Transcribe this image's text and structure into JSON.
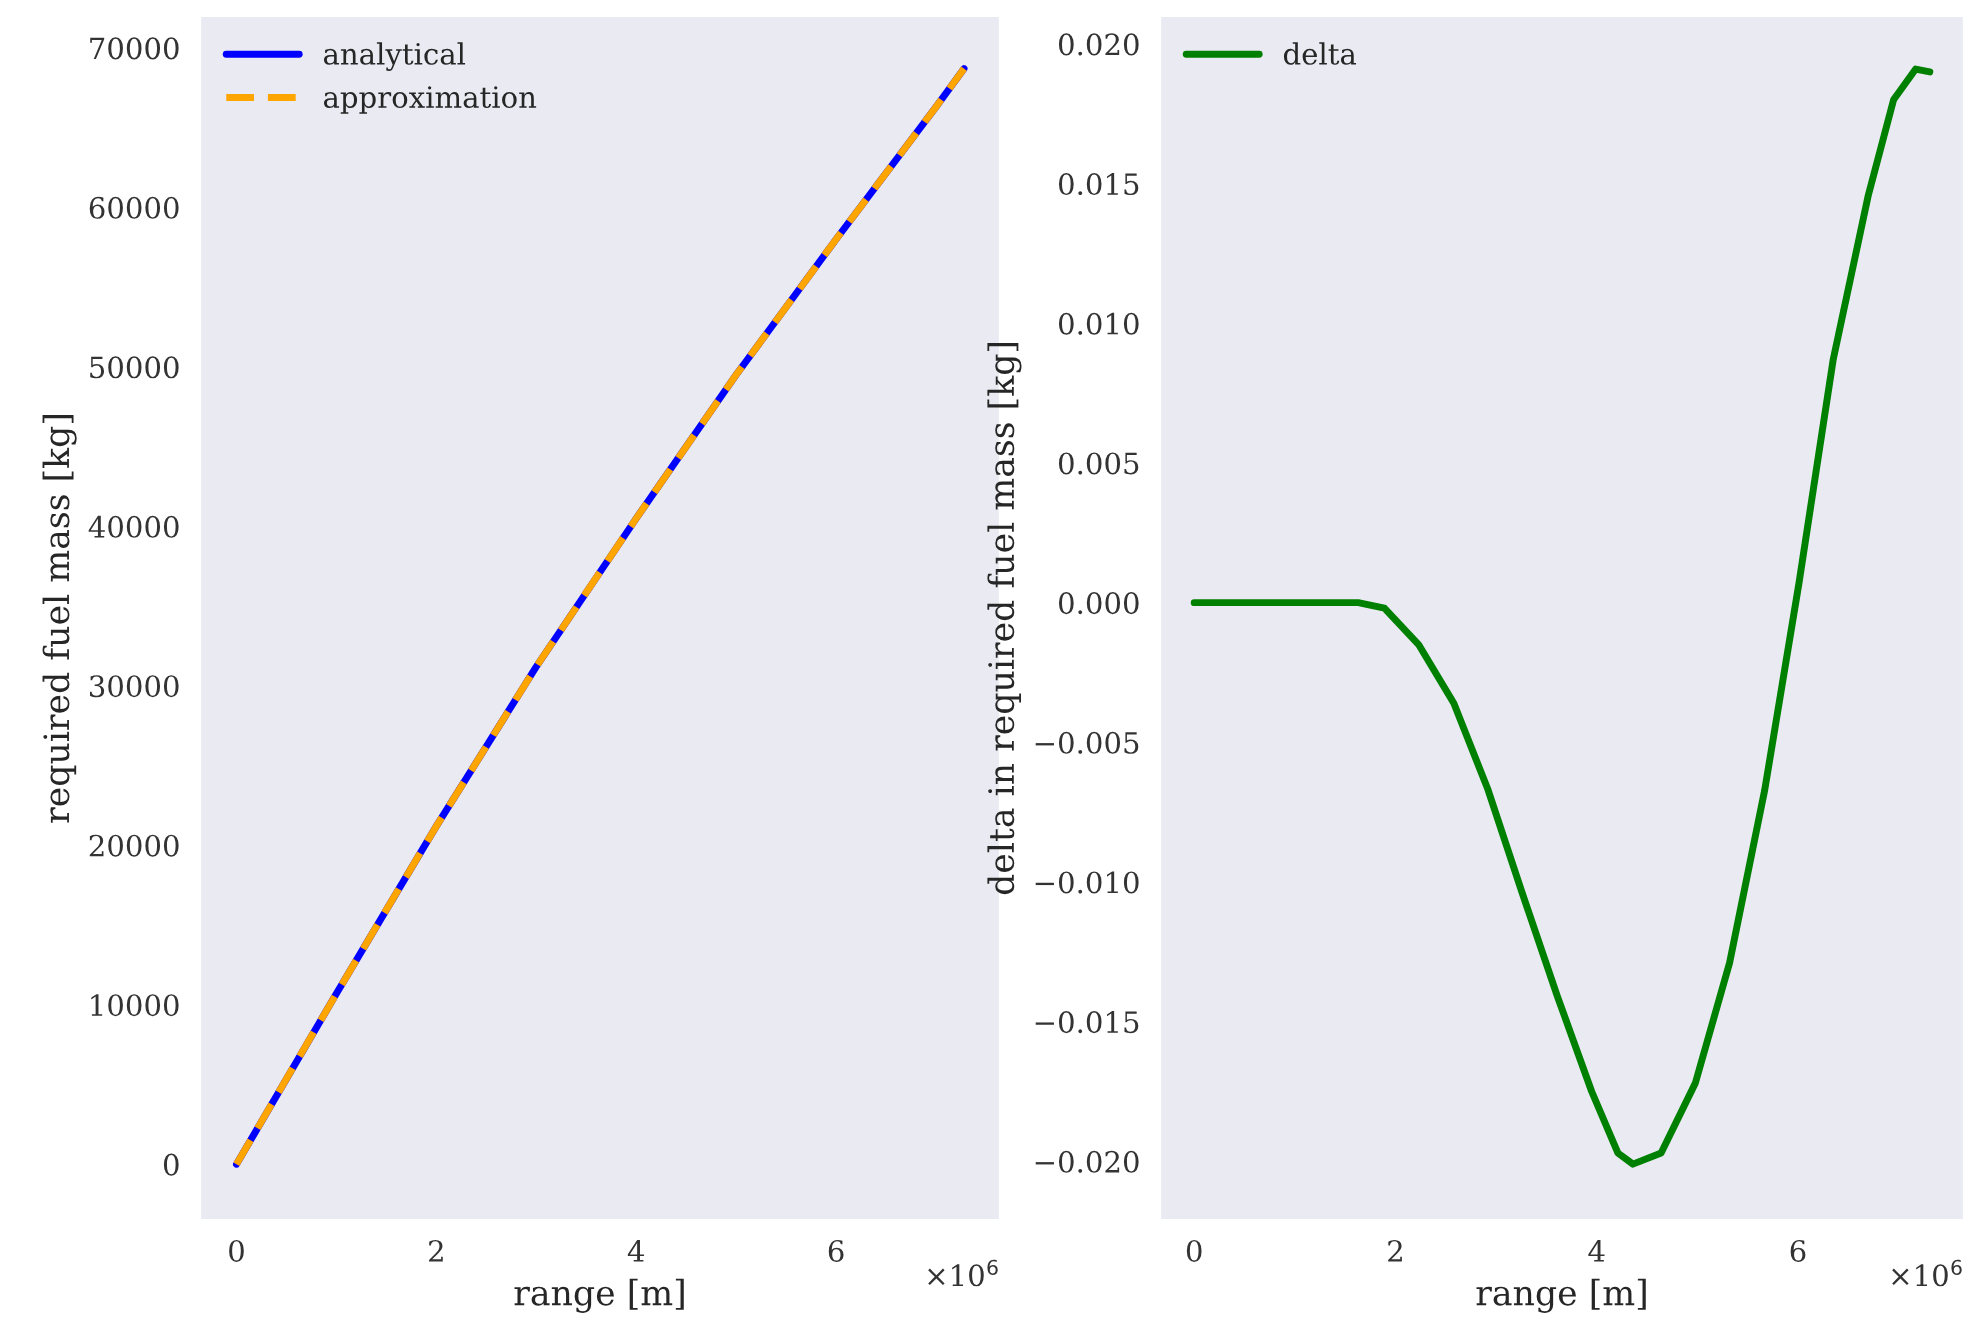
{
  "chart_data": [
    {
      "type": "line",
      "xlabel": "range [m]",
      "ylabel": "required fuel mass [kg]",
      "legend": "top left",
      "grid": false,
      "series": [
        {
          "name": "analytical",
          "color": "#0000ff",
          "line_style": "solid",
          "x": [
            0,
            1,
            2,
            3,
            4,
            5,
            6,
            7,
            7.28
          ],
          "values": [
            0,
            10700,
            21200,
            31200,
            40500,
            49500,
            58000,
            66300,
            68700
          ]
        },
        {
          "name": "approximation",
          "color": "#ffa500",
          "line_style": "dashed",
          "x": [
            0,
            1,
            2,
            3,
            4,
            5,
            6,
            7,
            7.28
          ],
          "values": [
            0,
            10700,
            21200,
            31200,
            40500,
            49500,
            58000,
            66300,
            68700
          ]
        }
      ],
      "xlim": [
        -0.365,
        7.64
      ],
      "xticks": [
        0,
        2,
        4,
        6
      ],
      "ylim": [
        -3500,
        72000
      ],
      "yticks": [
        0,
        10000,
        20000,
        30000,
        40000,
        50000,
        60000,
        70000
      ],
      "annotations": [
        "×10$^{6}$"
      ]
    },
    {
      "type": "line",
      "xlabel": "range [m]",
      "ylabel": "delta in required fuel mass [kg]",
      "legend": "top left",
      "grid": false,
      "series": [
        {
          "name": "delta",
          "color": "#008000",
          "line_style": "solid",
          "x": [
            0,
            1.63,
            1.89,
            2.23,
            2.58,
            2.92,
            3.26,
            3.61,
            3.95,
            4.21,
            4.36,
            4.64,
            4.98,
            5.32,
            5.67,
            6.01,
            6.35,
            6.7,
            6.95,
            7.17,
            7.31
          ],
          "values": [
            0,
            0,
            -0.0002,
            -0.0015,
            -0.0036,
            -0.0067,
            -0.0104,
            -0.0141,
            -0.0175,
            -0.0197,
            -0.0201,
            -0.0197,
            -0.0172,
            -0.0129,
            -0.0067,
            0.0007,
            0.0087,
            0.0146,
            0.018,
            0.0191,
            0.019
          ]
        }
      ],
      "xlim": [
        -0.34,
        7.65
      ],
      "xticks": [
        0,
        2,
        4,
        6
      ],
      "ylim": [
        -0.0221,
        0.021
      ],
      "yticks": [
        {
          "value": -0.02,
          "label": "−0.020"
        },
        {
          "value": -0.015,
          "label": "−0.015"
        },
        {
          "value": -0.01,
          "label": "−0.010"
        },
        {
          "value": -0.005,
          "label": "−0.005"
        },
        {
          "value": 0,
          "label": "0.000"
        },
        {
          "value": 0.005,
          "label": "0.005"
        },
        {
          "value": 0.01,
          "label": "0.010"
        },
        {
          "value": 0.015,
          "label": "0.015"
        },
        {
          "value": 0.02,
          "label": "0.020"
        }
      ],
      "annotations": [
        "×10$^{6}$"
      ]
    }
  ]
}
